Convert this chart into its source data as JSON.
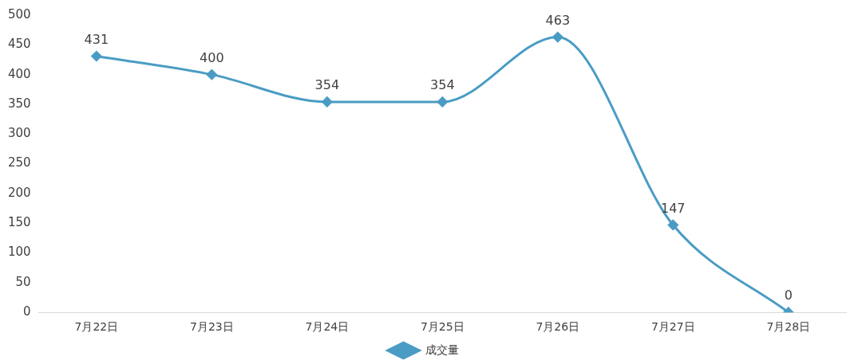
{
  "chart_data": {
    "type": "line",
    "categories": [
      "7月22日",
      "7月23日",
      "7月24日",
      "7月25日",
      "7月26日",
      "7月27日",
      "7月28日"
    ],
    "series": [
      {
        "name": "成交量",
        "color": "#4a9cc4",
        "values": [
          431,
          400,
          354,
          354,
          463,
          147,
          0
        ]
      }
    ],
    "ylim": [
      0,
      500
    ],
    "yticks": [
      0,
      50,
      100,
      150,
      200,
      250,
      300,
      350,
      400,
      450,
      500
    ],
    "grid": false,
    "legend": "bottom",
    "marker": "diamond",
    "line_style": "solid",
    "data_labels": true
  }
}
